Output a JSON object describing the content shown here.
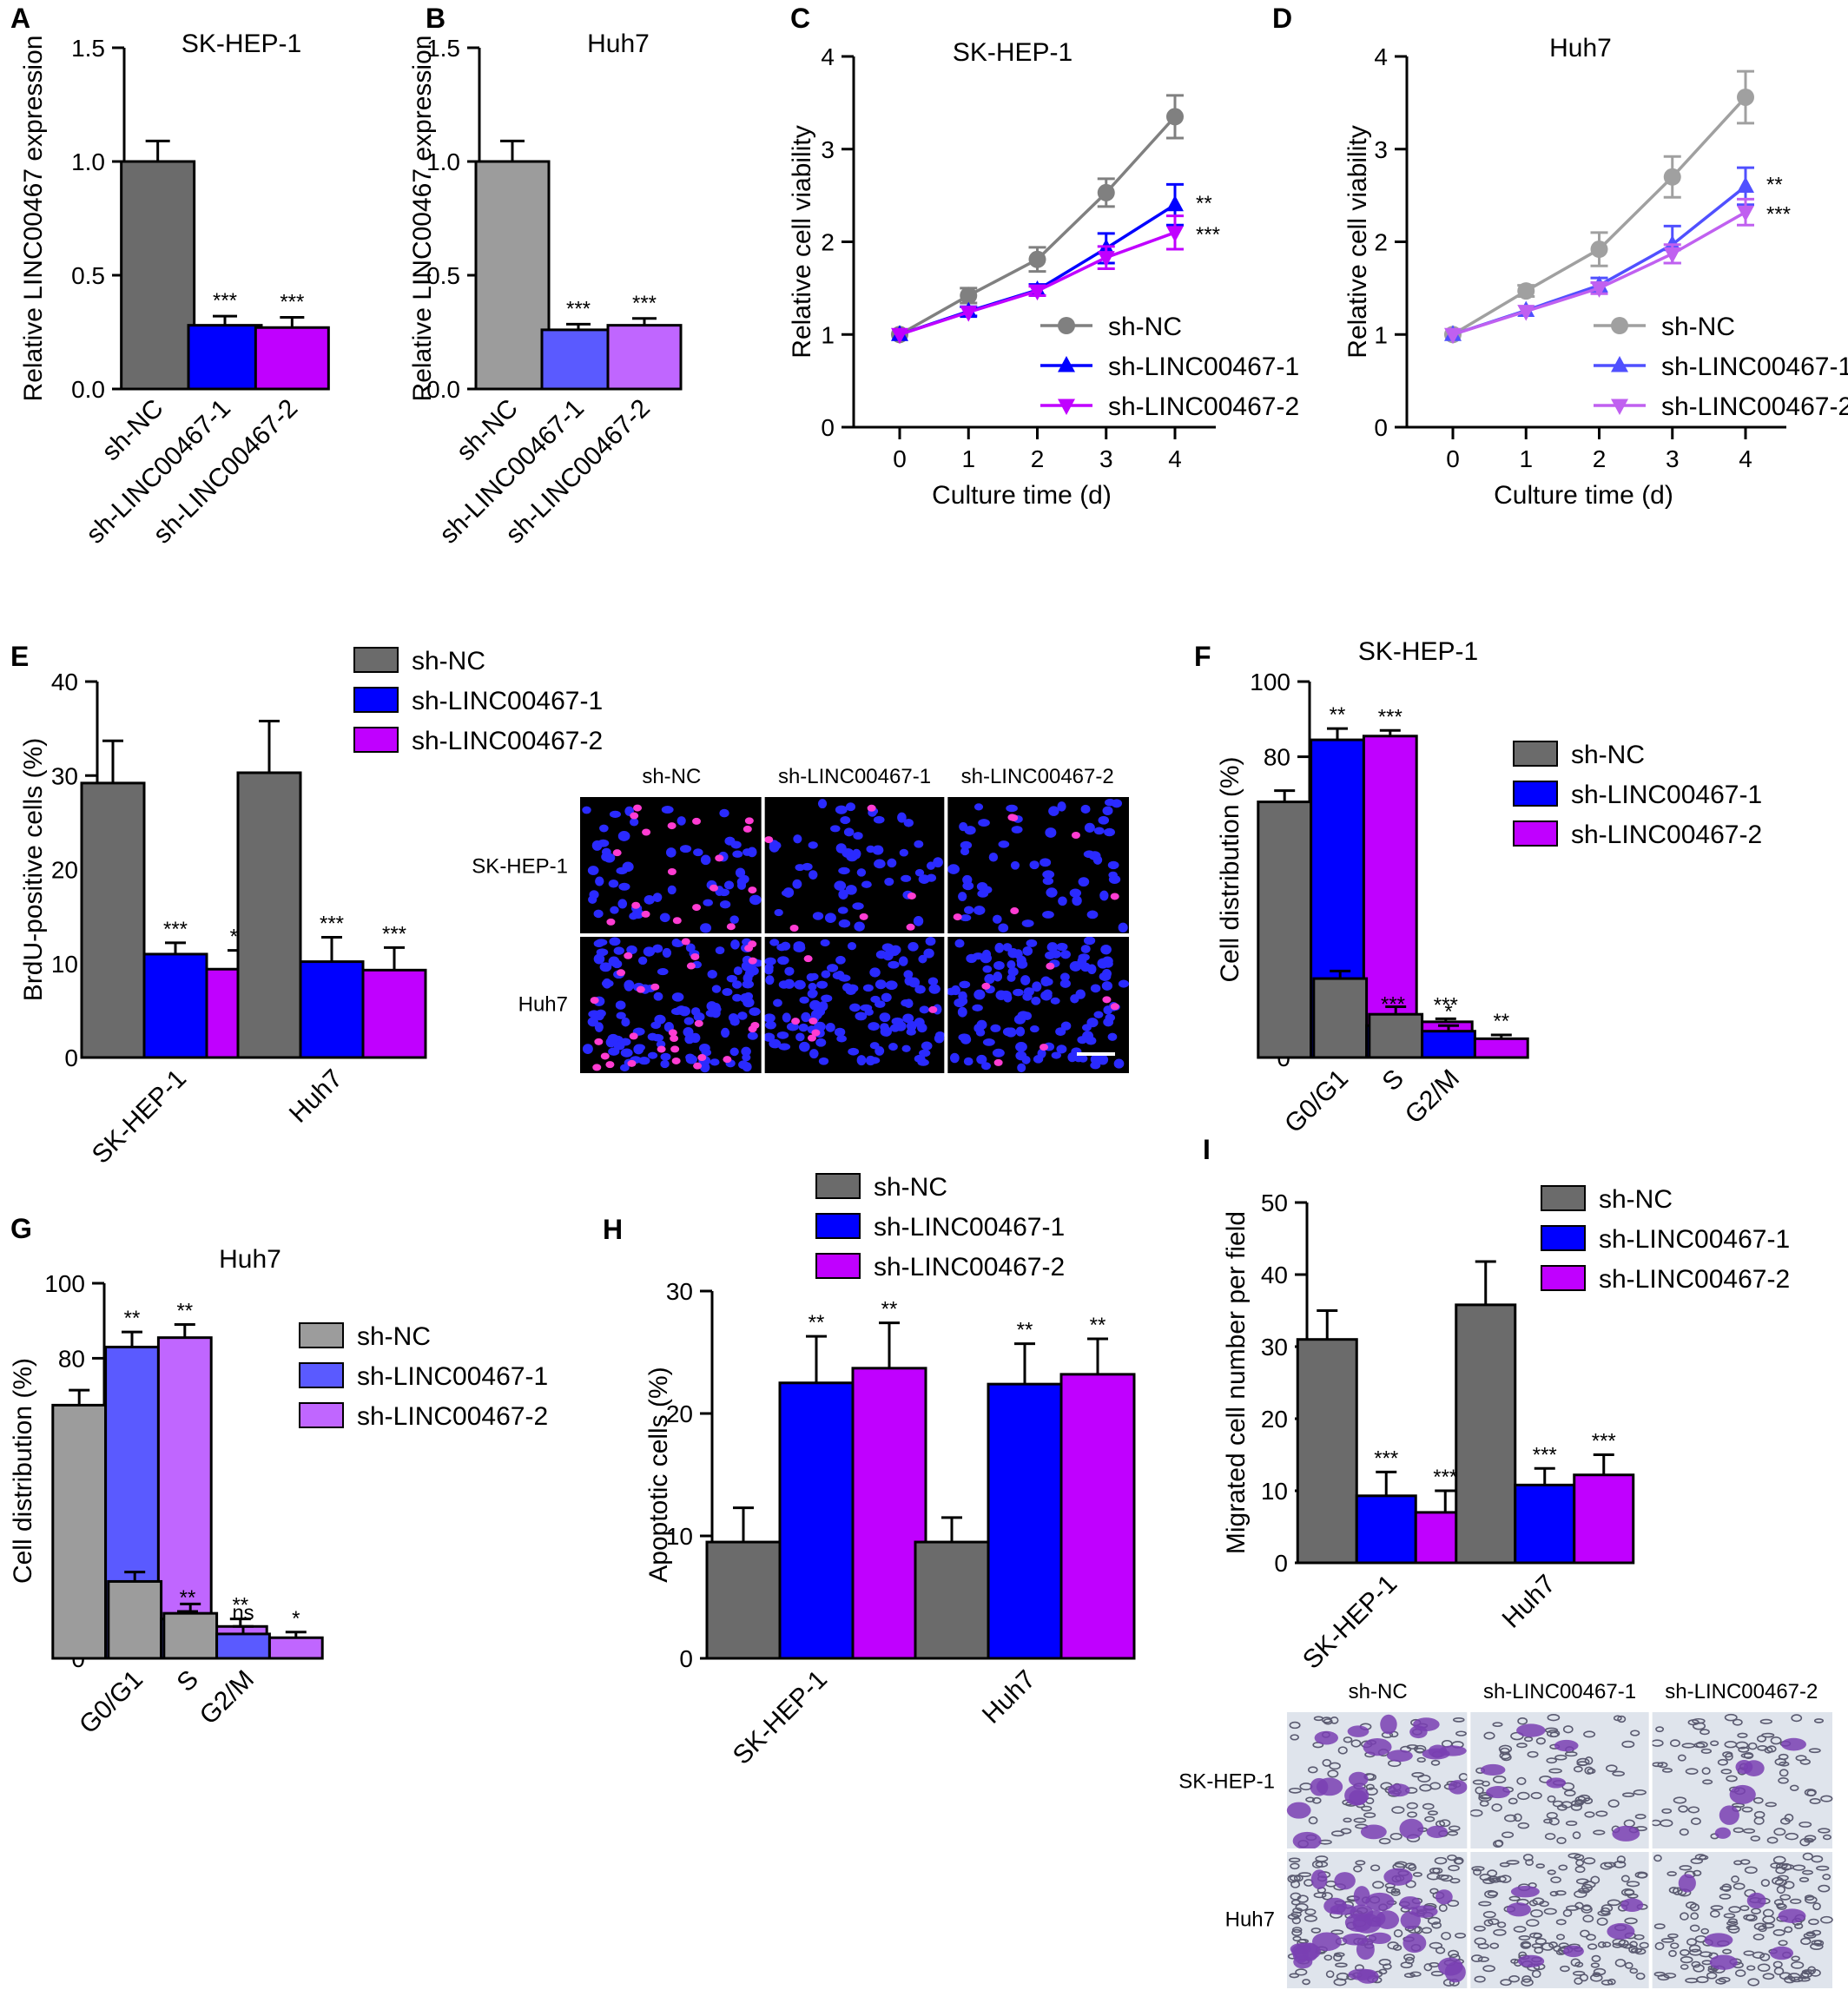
{
  "colors": {
    "nc": "#6b6b6b",
    "kd1": "#0000ff",
    "kd2": "#c000ff",
    "nc_light": "#9c9c9c",
    "kd1_light": "#5a5aff",
    "kd2_light": "#c066ff",
    "nc_line": "#808080",
    "kd1_line": "#0000ff",
    "kd2_line": "#c000ff",
    "nc_line_light": "#a0a0a0",
    "kd1_line_light": "#5050ff",
    "kd2_line_light": "#c060f0"
  },
  "micrographs": {
    "E": {
      "columns": [
        "sh-NC",
        "sh-LINC00467-1",
        "sh-LINC00467-2"
      ],
      "rows": [
        "SK-HEP-1",
        "Huh7"
      ],
      "style": "fluorescence"
    },
    "I": {
      "columns": [
        "sh-NC",
        "sh-LINC00467-1",
        "sh-LINC00467-2"
      ],
      "rows": [
        "SK-HEP-1",
        "Huh7"
      ],
      "style": "crystal-violet"
    }
  },
  "chart_data": [
    {
      "panel": "A",
      "type": "bar",
      "title": "SK-HEP-1",
      "ylabel": "Relative LINC00467 expression",
      "xlabel": "",
      "ylim": [
        0,
        1.5
      ],
      "yticks": [
        "0.0",
        "0.5",
        "1.0",
        "1.5"
      ],
      "ytick_values": [
        0,
        0.5,
        1.0,
        1.5
      ],
      "categories": [
        "sh-NC",
        "sh-LINC00467-1",
        "sh-LINC00467-2"
      ],
      "values": [
        1.0,
        0.28,
        0.27
      ],
      "errors": [
        0.09,
        0.04,
        0.045
      ],
      "significance": [
        "",
        "***",
        "***"
      ],
      "palette": "dark"
    },
    {
      "panel": "B",
      "type": "bar",
      "title": "Huh7",
      "ylabel": "Relative LINC00467 expression",
      "xlabel": "",
      "ylim": [
        0,
        1.5
      ],
      "yticks": [
        "0.0",
        "0.5",
        "1.0",
        "1.5"
      ],
      "ytick_values": [
        0,
        0.5,
        1.0,
        1.5
      ],
      "categories": [
        "sh-NC",
        "sh-LINC00467-1",
        "sh-LINC00467-2"
      ],
      "values": [
        1.0,
        0.26,
        0.28
      ],
      "errors": [
        0.09,
        0.025,
        0.03
      ],
      "significance": [
        "",
        "***",
        "***"
      ],
      "palette": "light"
    },
    {
      "panel": "C",
      "type": "line",
      "title": "SK-HEP-1",
      "xlabel": "Culture time (d)",
      "ylabel": "Relative cell viability",
      "x": [
        0,
        1,
        2,
        3,
        4
      ],
      "ylim": [
        0,
        4
      ],
      "yticks": [
        0,
        1,
        2,
        3,
        4
      ],
      "xticks": [
        0,
        1,
        2,
        3,
        4
      ],
      "legend_position": "lower-right",
      "series": [
        {
          "name": "sh-NC",
          "values": [
            1.0,
            1.42,
            1.81,
            2.53,
            3.35
          ],
          "errors": [
            0.03,
            0.08,
            0.13,
            0.15,
            0.23
          ],
          "marker": "circle"
        },
        {
          "name": "sh-LINC00467-1",
          "values": [
            1.0,
            1.25,
            1.48,
            1.93,
            2.4
          ],
          "errors": [
            0.03,
            0.05,
            0.06,
            0.16,
            0.22
          ],
          "marker": "triangle-up"
        },
        {
          "name": "sh-LINC00467-2",
          "values": [
            1.0,
            1.24,
            1.47,
            1.83,
            2.1
          ],
          "errors": [
            0.03,
            0.04,
            0.05,
            0.12,
            0.18
          ],
          "marker": "triangle-down"
        }
      ],
      "significance": [
        "**",
        "***"
      ],
      "palette": "dark"
    },
    {
      "panel": "D",
      "type": "line",
      "title": "Huh7",
      "xlabel": "Culture time (d)",
      "ylabel": "Relative cell viability",
      "x": [
        0,
        1,
        2,
        3,
        4
      ],
      "ylim": [
        0,
        4
      ],
      "yticks": [
        0,
        1,
        2,
        3,
        4
      ],
      "xticks": [
        0,
        1,
        2,
        3,
        4
      ],
      "legend_position": "lower-right",
      "series": [
        {
          "name": "sh-NC",
          "values": [
            1.0,
            1.47,
            1.92,
            2.7,
            3.56
          ],
          "errors": [
            0.03,
            0.06,
            0.18,
            0.22,
            0.28
          ],
          "marker": "circle"
        },
        {
          "name": "sh-LINC00467-1",
          "values": [
            1.0,
            1.26,
            1.53,
            1.97,
            2.6
          ],
          "errors": [
            0.03,
            0.04,
            0.08,
            0.2,
            0.2
          ],
          "marker": "triangle-up"
        },
        {
          "name": "sh-LINC00467-2",
          "values": [
            1.0,
            1.25,
            1.5,
            1.87,
            2.32
          ],
          "errors": [
            0.03,
            0.04,
            0.06,
            0.1,
            0.14
          ],
          "marker": "triangle-down"
        }
      ],
      "significance": [
        "**",
        "***"
      ],
      "palette": "light"
    },
    {
      "panel": "E",
      "type": "bar",
      "title": "",
      "ylabel": "BrdU-positive cells (%)",
      "xlabel": "",
      "ylim": [
        0,
        40
      ],
      "yticks": [
        "0",
        "10",
        "20",
        "30",
        "40"
      ],
      "ytick_values": [
        0,
        10,
        20,
        30,
        40
      ],
      "categories": [
        "SK-HEP-1",
        "Huh7"
      ],
      "legend_position": "top-right",
      "series": [
        {
          "name": "sh-NC",
          "values": [
            29.2,
            30.3
          ],
          "errors": [
            4.5,
            5.5
          ]
        },
        {
          "name": "sh-LINC00467-1",
          "values": [
            11.0,
            10.2
          ],
          "errors": [
            1.2,
            2.6
          ]
        },
        {
          "name": "sh-LINC00467-2",
          "values": [
            9.4,
            9.3
          ],
          "errors": [
            2.0,
            2.4
          ]
        }
      ],
      "significance": [
        [
          "",
          "***",
          "**"
        ],
        [
          "",
          "***",
          "***"
        ]
      ],
      "palette": "dark"
    },
    {
      "panel": "F",
      "type": "bar",
      "title": "SK-HEP-1",
      "ylabel": "Cell distribution (%)",
      "xlabel": "",
      "ylim": [
        0,
        100
      ],
      "yticks": [
        "0",
        "20",
        "40",
        "60",
        "80",
        "100"
      ],
      "ytick_values": [
        0,
        20,
        40,
        60,
        80,
        100
      ],
      "categories": [
        "G0/G1",
        "S",
        "G2/M"
      ],
      "legend_position": "top-right",
      "series": [
        {
          "name": "sh-NC",
          "values": [
            68.0,
            21.0,
            11.5
          ],
          "errors": [
            3.0,
            2.0,
            2.0
          ]
        },
        {
          "name": "sh-LINC00467-1",
          "values": [
            84.5,
            8.5,
            7.0
          ],
          "errors": [
            3.0,
            2.0,
            1.5
          ]
        },
        {
          "name": "sh-LINC00467-2",
          "values": [
            85.5,
            9.5,
            5.0
          ],
          "errors": [
            1.5,
            0.8,
            1.0
          ]
        }
      ],
      "significance": [
        [
          "",
          "**",
          "***"
        ],
        [
          "",
          "***",
          "***"
        ],
        [
          "",
          "*",
          "**"
        ]
      ],
      "palette": "dark"
    },
    {
      "panel": "G",
      "type": "bar",
      "title": "Huh7",
      "ylabel": "Cell distribution (%)",
      "xlabel": "",
      "ylim": [
        0,
        100
      ],
      "yticks": [
        "0",
        "20",
        "40",
        "60",
        "80",
        "100"
      ],
      "ytick_values": [
        0,
        20,
        40,
        60,
        80,
        100
      ],
      "categories": [
        "G0/G1",
        "S",
        "G2/M"
      ],
      "legend_position": "top-right",
      "series": [
        {
          "name": "sh-NC",
          "values": [
            67.5,
            20.5,
            12.0
          ],
          "errors": [
            4.0,
            2.5,
            2.5
          ]
        },
        {
          "name": "sh-LINC00467-1",
          "values": [
            83.0,
            10.5,
            6.5
          ],
          "errors": [
            4.0,
            2.0,
            2.0
          ]
        },
        {
          "name": "sh-LINC00467-2",
          "values": [
            85.5,
            8.5,
            5.5
          ],
          "errors": [
            3.5,
            2.0,
            1.5
          ]
        }
      ],
      "significance": [
        [
          "",
          "**",
          "**"
        ],
        [
          "",
          "**",
          "**"
        ],
        [
          "",
          "ns",
          "*"
        ]
      ],
      "palette": "light"
    },
    {
      "panel": "H",
      "type": "bar",
      "title": "",
      "ylabel": "Apoptotic cells (%)",
      "xlabel": "",
      "ylim": [
        0,
        30
      ],
      "yticks": [
        "0",
        "10",
        "20",
        "30"
      ],
      "ytick_values": [
        0,
        10,
        20,
        30
      ],
      "categories": [
        "SK-HEP-1",
        "Huh7"
      ],
      "legend_position": "top",
      "series": [
        {
          "name": "sh-NC",
          "values": [
            9.5,
            9.5
          ],
          "errors": [
            2.8,
            2.0
          ]
        },
        {
          "name": "sh-LINC00467-1",
          "values": [
            22.5,
            22.4
          ],
          "errors": [
            3.8,
            3.3
          ]
        },
        {
          "name": "sh-LINC00467-2",
          "values": [
            23.7,
            23.2
          ],
          "errors": [
            3.7,
            2.9
          ]
        }
      ],
      "significance": [
        [
          "",
          "**",
          "**"
        ],
        [
          "",
          "**",
          "**"
        ]
      ],
      "palette": "dark"
    },
    {
      "panel": "I",
      "type": "bar",
      "title": "",
      "ylabel": "Migrated cell number per field",
      "xlabel": "",
      "ylim": [
        0,
        50
      ],
      "yticks": [
        "0",
        "10",
        "20",
        "30",
        "40",
        "50"
      ],
      "ytick_values": [
        0,
        10,
        20,
        30,
        40,
        50
      ],
      "categories": [
        "SK-HEP-1",
        "Huh7"
      ],
      "legend_position": "top-right",
      "series": [
        {
          "name": "sh-NC",
          "values": [
            31.0,
            35.8
          ],
          "errors": [
            4.0,
            6.0
          ]
        },
        {
          "name": "sh-LINC00467-1",
          "values": [
            9.3,
            10.8
          ],
          "errors": [
            3.3,
            2.3
          ]
        },
        {
          "name": "sh-LINC00467-2",
          "values": [
            7.0,
            12.2
          ],
          "errors": [
            3.0,
            2.8
          ]
        }
      ],
      "significance": [
        [
          "",
          "***",
          "***"
        ],
        [
          "",
          "***",
          "***"
        ]
      ],
      "palette": "dark"
    }
  ]
}
